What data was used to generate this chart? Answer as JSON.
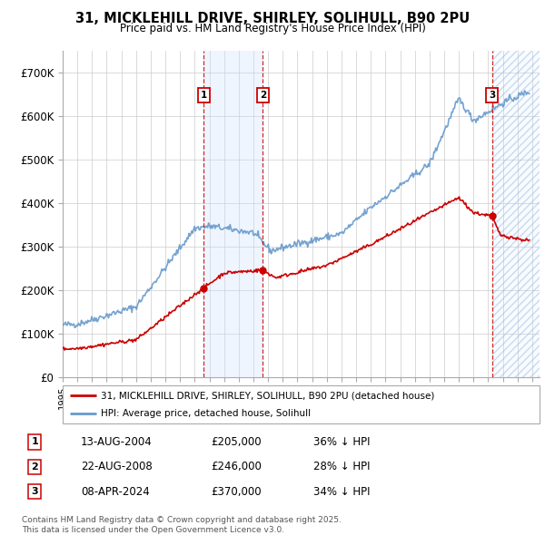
{
  "title": "31, MICKLEHILL DRIVE, SHIRLEY, SOLIHULL, B90 2PU",
  "subtitle": "Price paid vs. HM Land Registry's House Price Index (HPI)",
  "xlim_left": 1995.0,
  "xlim_right": 2027.5,
  "ylim_bottom": 0,
  "ylim_top": 750000,
  "yticks": [
    0,
    100000,
    200000,
    300000,
    400000,
    500000,
    600000,
    700000
  ],
  "ytick_labels": [
    "£0",
    "£100K",
    "£200K",
    "£300K",
    "£400K",
    "£500K",
    "£600K",
    "£700K"
  ],
  "transactions": [
    {
      "date_label": "13-AUG-2004",
      "year": 2004.619,
      "price": 205000,
      "label": "1",
      "pct": "36% ↓ HPI"
    },
    {
      "date_label": "22-AUG-2008",
      "year": 2008.638,
      "price": 246000,
      "label": "2",
      "pct": "28% ↓ HPI"
    },
    {
      "date_label": "08-APR-2024",
      "year": 2024.269,
      "price": 370000,
      "label": "3",
      "pct": "34% ↓ HPI"
    }
  ],
  "legend_property": "31, MICKLEHILL DRIVE, SHIRLEY, SOLIHULL, B90 2PU (detached house)",
  "legend_hpi": "HPI: Average price, detached house, Solihull",
  "footer": "Contains HM Land Registry data © Crown copyright and database right 2025.\nThis data is licensed under the Open Government Licence v3.0.",
  "red_color": "#cc0000",
  "blue_color": "#6699cc",
  "shade_color": "#ddeeff"
}
